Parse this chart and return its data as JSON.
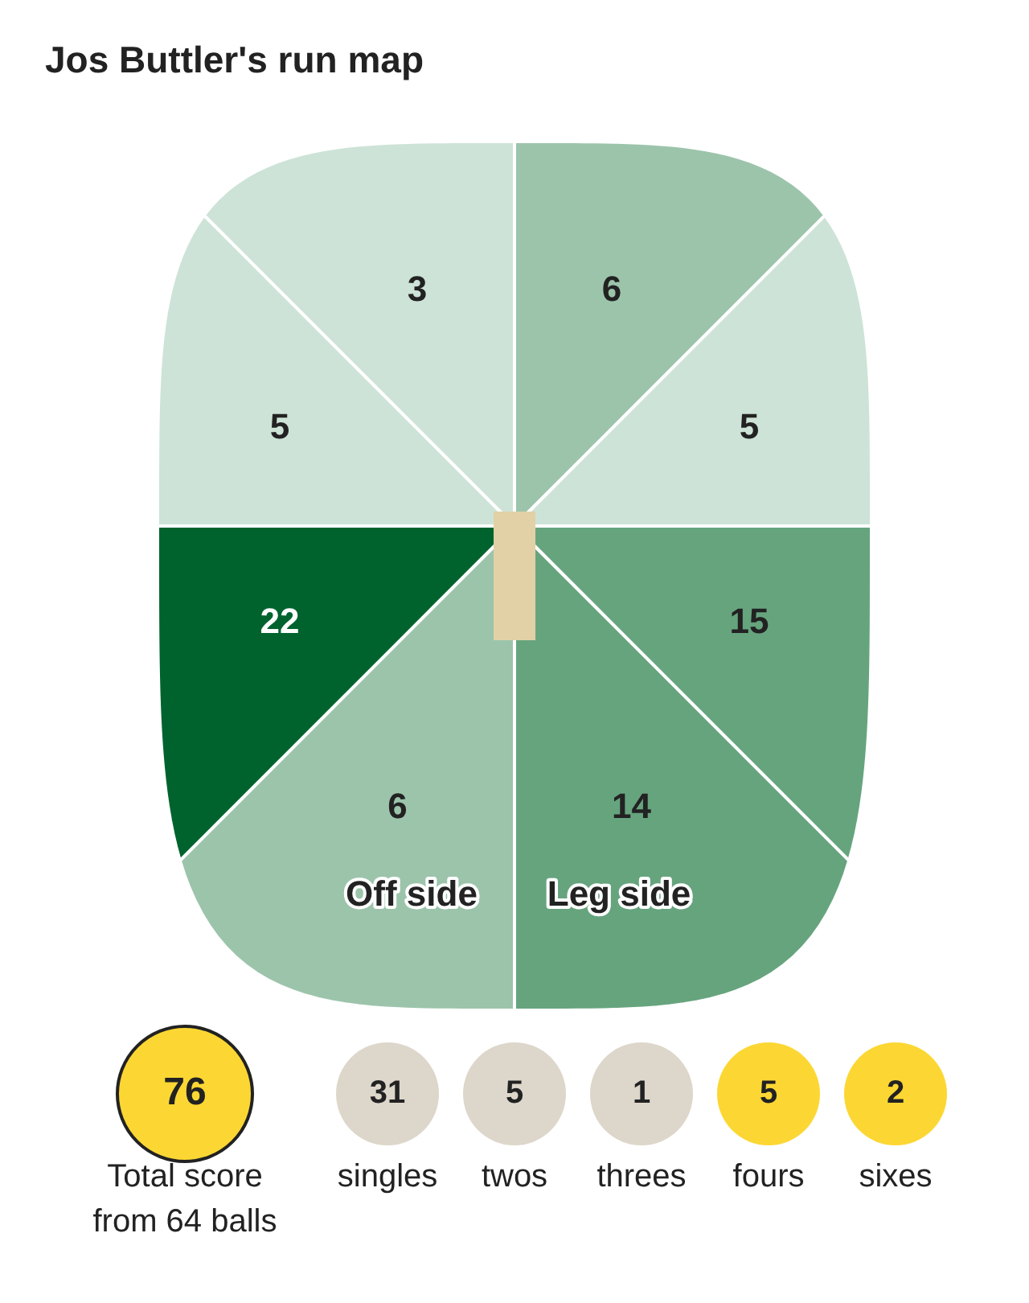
{
  "chart_data": [
    {
      "type": "other",
      "title": "Jos Buttler's run map",
      "values": [
        3,
        6,
        5,
        5,
        22,
        15,
        6,
        14
      ],
      "colors": [
        "#cde3d7",
        "#9cc4ab",
        "#cde3d7",
        "#cde3d7",
        "#00632e",
        "#66a47e",
        "#9cc4ab",
        "#66a47e"
      ],
      "annotations": [
        "Off side",
        "Leg side"
      ],
      "data_labels": true
    },
    {
      "type": "other",
      "categories": [
        "Total score\nfrom 64 balls",
        "singles",
        "twos",
        "threes",
        "fours",
        "sixes"
      ],
      "values": [
        76,
        31,
        5,
        1,
        5,
        2
      ],
      "colors": [
        "#fcd733",
        "#ddd6ca",
        "#ddd6ca",
        "#ddd6ca",
        "#fcd733",
        "#fcd733"
      ],
      "data_labels": true
    }
  ]
}
